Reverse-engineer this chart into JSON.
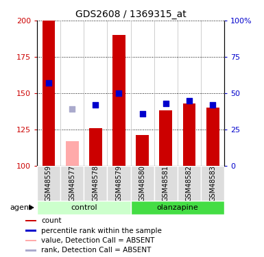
{
  "title": "GDS2608 / 1369315_at",
  "samples": [
    "GSM48559",
    "GSM48577",
    "GSM48578",
    "GSM48579",
    "GSM48580",
    "GSM48581",
    "GSM48582",
    "GSM48583"
  ],
  "bar_values": [
    200,
    null,
    126,
    190,
    121,
    138,
    143,
    140
  ],
  "bar_absent_values": [
    null,
    117,
    null,
    null,
    null,
    null,
    null,
    null
  ],
  "bar_color_present": "#cc0000",
  "bar_color_absent": "#ffaaaa",
  "dot_values": [
    157,
    null,
    142,
    150,
    136,
    143,
    145,
    142
  ],
  "dot_absent_values": [
    null,
    139,
    null,
    null,
    null,
    null,
    null,
    null
  ],
  "dot_color_present": "#0000cc",
  "dot_color_absent": "#aaaacc",
  "ymin": 100,
  "ymax": 200,
  "yticks": [
    100,
    125,
    150,
    175,
    200
  ],
  "right_yticks": [
    0,
    25,
    50,
    75,
    100
  ],
  "right_yticklabels": [
    "0",
    "25",
    "50",
    "75",
    "100%"
  ],
  "group_labels": [
    "control",
    "olanzapine"
  ],
  "group_colors": [
    "#ccffcc",
    "#44dd44"
  ],
  "agent_label": "agent",
  "left_tick_color": "#cc0000",
  "right_tick_color": "#0000cc",
  "bar_width": 0.55,
  "dot_size": 28,
  "legend_items": [
    [
      "#cc0000",
      "count"
    ],
    [
      "#0000cc",
      "percentile rank within the sample"
    ],
    [
      "#ffaaaa",
      "value, Detection Call = ABSENT"
    ],
    [
      "#aaaacc",
      "rank, Detection Call = ABSENT"
    ]
  ]
}
